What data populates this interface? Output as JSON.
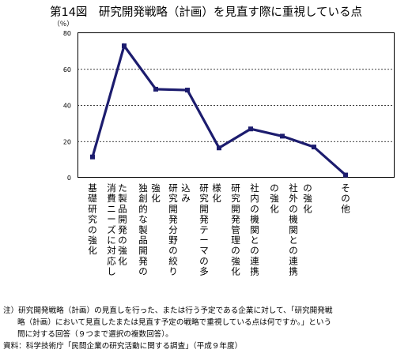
{
  "figure_title": "第14図　研究開発戦略（計画）を見直す際に重視している点",
  "chart_data": {
    "type": "line",
    "unit_label": "（％）",
    "ylim": [
      0,
      80
    ],
    "yticks": [
      "0",
      "20",
      "40",
      "60",
      "80"
    ],
    "grid": true,
    "categories": [
      "基礎研究の強化",
      "消費ニーズに対応した製品開発の強化",
      "独創的な製品開発の強化",
      "研究開発分野の絞込み",
      "研究開発テーマの多様化",
      "研究開発管理の強化",
      "社内の機関との連携の強化",
      "社外の機関との連携の強化",
      "その他"
    ],
    "values": [
      11.5,
      73.0,
      49.0,
      48.5,
      16.5,
      27.0,
      23.0,
      17.0,
      1.5
    ],
    "line_color": "#1c1c6e"
  },
  "category_columns": [
    [
      "基",
      "礎",
      "研",
      "究",
      "の",
      "強",
      "化"
    ],
    [
      "消",
      "費",
      "ニ",
      "ー",
      "ズ",
      "に",
      "対",
      "応",
      "し"
    ],
    [
      "た",
      "製",
      "品",
      "開",
      "発",
      "の",
      "強",
      "化"
    ],
    [
      "独",
      "創",
      "的",
      "な",
      "製",
      "品",
      "開",
      "発",
      "の"
    ],
    [
      "強",
      "化"
    ],
    [
      "研",
      "究",
      "開",
      "発",
      "分",
      "野",
      "の",
      "絞",
      "り"
    ],
    [
      "込",
      "み"
    ],
    [
      "研",
      "究",
      "開",
      "発",
      "テ",
      "ー",
      "マ",
      "の",
      "多"
    ],
    [
      "様",
      "化"
    ],
    [
      "研",
      "究",
      "開",
      "発",
      "管",
      "理",
      "の",
      "強",
      "化"
    ],
    [
      "社",
      "内",
      "の",
      "機",
      "関",
      "と",
      "の",
      "連",
      "携"
    ],
    [
      "の",
      "強",
      "化"
    ],
    [
      "社",
      "外",
      "の",
      "機",
      "関",
      "と",
      "の",
      "連",
      "携"
    ],
    [
      "の",
      "強",
      "化"
    ],
    [
      "そ",
      "の",
      "他"
    ]
  ],
  "notes": {
    "line1": "注）研究開発戦略（計画）の見直しを行った、または行う予定である企業に対して、「研究開発戦",
    "line2": "略（計画）において見直したまたは見直す予定の戦略で重視している点は何ですか。」という",
    "line3": "問に対する回答（９つまで選択の複数回答）。",
    "source": "資料：科学技術庁「民間企業の研究活動に関する調査」（平成９年度）"
  }
}
